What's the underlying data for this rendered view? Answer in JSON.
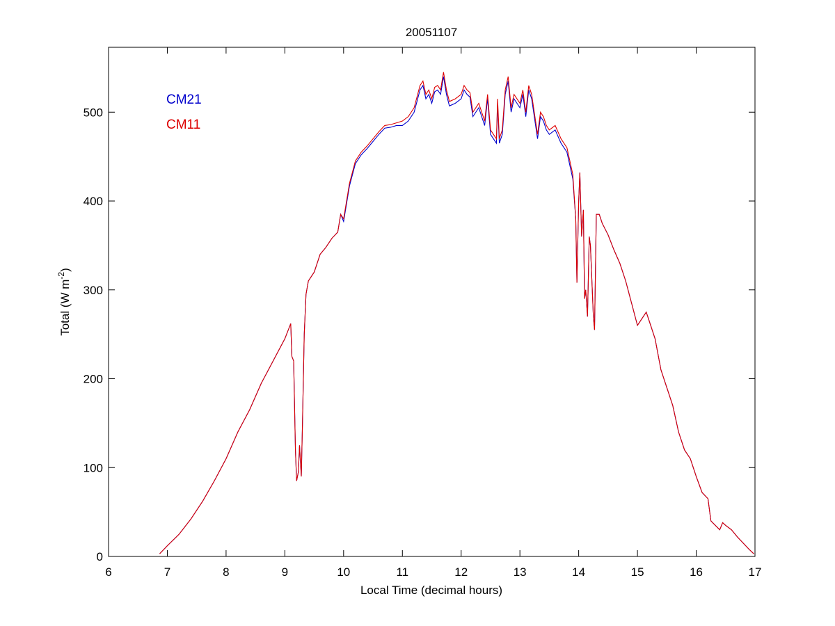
{
  "chart_data": {
    "type": "line",
    "title": "20051107",
    "xlabel": "Local Time (decimal hours)",
    "ylabel": [
      "Total (W m",
      "-2",
      ")"
    ],
    "x": [
      6.87,
      7.0,
      7.2,
      7.4,
      7.6,
      7.8,
      8.0,
      8.2,
      8.4,
      8.6,
      8.8,
      9.0,
      9.1,
      9.12,
      9.15,
      9.18,
      9.2,
      9.23,
      9.25,
      9.28,
      9.3,
      9.33,
      9.36,
      9.4,
      9.5,
      9.6,
      9.7,
      9.8,
      9.9,
      9.95,
      10.0,
      10.1,
      10.2,
      10.3,
      10.4,
      10.5,
      10.6,
      10.7,
      10.8,
      10.9,
      11.0,
      11.1,
      11.2,
      11.3,
      11.35,
      11.4,
      11.45,
      11.5,
      11.55,
      11.6,
      11.65,
      11.7,
      11.75,
      11.8,
      11.9,
      12.0,
      12.05,
      12.1,
      12.15,
      12.2,
      12.3,
      12.4,
      12.45,
      12.5,
      12.6,
      12.62,
      12.65,
      12.7,
      12.75,
      12.8,
      12.85,
      12.9,
      13.0,
      13.05,
      13.1,
      13.15,
      13.2,
      13.3,
      13.35,
      13.4,
      13.45,
      13.5,
      13.6,
      13.7,
      13.8,
      13.9,
      13.95,
      13.97,
      14.0,
      14.02,
      14.05,
      14.08,
      14.1,
      14.12,
      14.15,
      14.18,
      14.2,
      14.25,
      14.27,
      14.3,
      14.35,
      14.4,
      14.5,
      14.6,
      14.7,
      14.8,
      14.9,
      15.0,
      15.1,
      15.15,
      15.2,
      15.3,
      15.4,
      15.5,
      15.6,
      15.7,
      15.8,
      15.9,
      16.0,
      16.1,
      16.2,
      16.25,
      16.4,
      16.45,
      16.5,
      16.6,
      16.7,
      16.8,
      16.9,
      16.98
    ],
    "series": [
      {
        "name": "CM21",
        "color": "#0000cc",
        "values": [
          3,
          12,
          25,
          42,
          62,
          85,
          110,
          140,
          165,
          195,
          220,
          245,
          262,
          225,
          220,
          120,
          85,
          95,
          125,
          90,
          150,
          250,
          295,
          310,
          320,
          340,
          348,
          358,
          365,
          385,
          377,
          417,
          442,
          452,
          459,
          467,
          475,
          482,
          483,
          485,
          485,
          490,
          500,
          525,
          530,
          515,
          520,
          510,
          523,
          525,
          520,
          540,
          520,
          507,
          510,
          515,
          525,
          520,
          517,
          495,
          505,
          485,
          515,
          475,
          465,
          510,
          465,
          475,
          520,
          535,
          500,
          515,
          505,
          520,
          495,
          525,
          515,
          470,
          495,
          490,
          480,
          475,
          480,
          465,
          455,
          425,
          380,
          308,
          400,
          432,
          360,
          390,
          290,
          300,
          270,
          360,
          350,
          270,
          255,
          385,
          385,
          375,
          362,
          345,
          330,
          310,
          285,
          260,
          270,
          275,
          265,
          245,
          210,
          190,
          170,
          140,
          120,
          110,
          90,
          72,
          65,
          40,
          30,
          38,
          35,
          30,
          22,
          15,
          8,
          3
        ]
      },
      {
        "name": "CM11",
        "color": "#dd0000",
        "values": [
          3,
          12,
          25,
          42,
          62,
          85,
          110,
          140,
          165,
          195,
          220,
          245,
          262,
          225,
          220,
          120,
          85,
          95,
          125,
          90,
          150,
          250,
          295,
          310,
          320,
          340,
          348,
          358,
          365,
          385,
          380,
          420,
          445,
          455,
          462,
          470,
          478,
          485,
          486,
          488,
          490,
          495,
          505,
          530,
          535,
          520,
          525,
          515,
          528,
          530,
          525,
          545,
          525,
          512,
          515,
          520,
          530,
          525,
          522,
          500,
          510,
          490,
          520,
          480,
          470,
          515,
          470,
          480,
          525,
          540,
          505,
          520,
          510,
          525,
          500,
          530,
          520,
          475,
          500,
          495,
          485,
          480,
          485,
          470,
          460,
          430,
          380,
          308,
          400,
          432,
          360,
          390,
          290,
          300,
          270,
          360,
          350,
          270,
          255,
          385,
          385,
          375,
          362,
          345,
          330,
          310,
          285,
          260,
          270,
          275,
          265,
          245,
          210,
          190,
          170,
          140,
          120,
          110,
          90,
          72,
          65,
          40,
          30,
          38,
          35,
          30,
          22,
          15,
          8,
          3
        ]
      }
    ],
    "xlim": [
      6,
      17
    ],
    "xticks": [
      6,
      7,
      8,
      9,
      10,
      11,
      12,
      13,
      14,
      15,
      16,
      17
    ],
    "ylim": [
      0,
      573
    ],
    "yticks": [
      0,
      100,
      200,
      300,
      400,
      500
    ],
    "legend": "upper left"
  }
}
